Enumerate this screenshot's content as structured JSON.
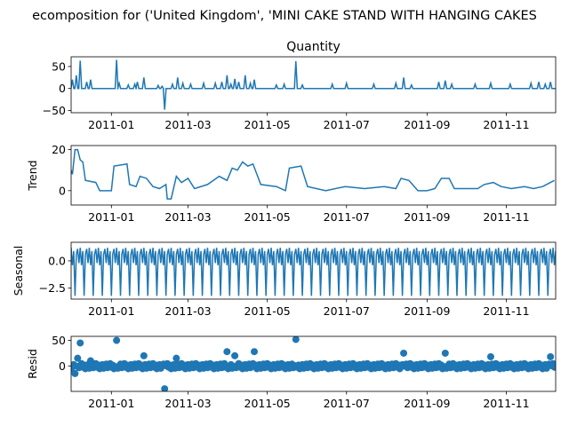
{
  "figure": {
    "title": "ecomposition for ('United Kingdom', 'MINI CAKE STAND WITH HANGING CAKES"
  },
  "chart_data": [
    {
      "type": "line",
      "panel": "observed",
      "title": "Quantity",
      "ylabel": "",
      "color": "#1f77b4",
      "x_range": [
        "2010-12-01",
        "2011-12-09"
      ],
      "ylim": [
        -55,
        72
      ],
      "yticks": [
        -50,
        0,
        50
      ],
      "xticks": [
        "2011-01",
        "2011-03",
        "2011-05",
        "2011-07",
        "2011-09",
        "2011-11"
      ],
      "baseline": 0,
      "spikes": [
        {
          "x": "2010-12-02",
          "y": 20
        },
        {
          "x": "2010-12-05",
          "y": 30
        },
        {
          "x": "2010-12-08",
          "y": 63
        },
        {
          "x": "2010-12-13",
          "y": 15
        },
        {
          "x": "2010-12-16",
          "y": 20
        },
        {
          "x": "2011-01-05",
          "y": 65
        },
        {
          "x": "2011-01-07",
          "y": 12
        },
        {
          "x": "2011-01-14",
          "y": 8
        },
        {
          "x": "2011-01-19",
          "y": 10
        },
        {
          "x": "2011-01-21",
          "y": 15
        },
        {
          "x": "2011-01-26",
          "y": 25
        },
        {
          "x": "2011-02-06",
          "y": 7
        },
        {
          "x": "2011-02-09",
          "y": 5
        },
        {
          "x": "2011-02-11",
          "y": -48
        },
        {
          "x": "2011-02-17",
          "y": 10
        },
        {
          "x": "2011-02-21",
          "y": 25
        },
        {
          "x": "2011-02-25",
          "y": 12
        },
        {
          "x": "2011-03-03",
          "y": 10
        },
        {
          "x": "2011-03-13",
          "y": 12
        },
        {
          "x": "2011-03-22",
          "y": 12
        },
        {
          "x": "2011-03-27",
          "y": 15
        },
        {
          "x": "2011-03-31",
          "y": 30
        },
        {
          "x": "2011-04-03",
          "y": 10
        },
        {
          "x": "2011-04-06",
          "y": 22
        },
        {
          "x": "2011-04-09",
          "y": 15
        },
        {
          "x": "2011-04-14",
          "y": 30
        },
        {
          "x": "2011-04-18",
          "y": 12
        },
        {
          "x": "2011-04-21",
          "y": 20
        },
        {
          "x": "2011-05-08",
          "y": 8
        },
        {
          "x": "2011-05-14",
          "y": 10
        },
        {
          "x": "2011-05-23",
          "y": 62
        },
        {
          "x": "2011-05-28",
          "y": 8
        },
        {
          "x": "2011-06-20",
          "y": 10
        },
        {
          "x": "2011-07-01",
          "y": 12
        },
        {
          "x": "2011-07-22",
          "y": 10
        },
        {
          "x": "2011-08-08",
          "y": 12
        },
        {
          "x": "2011-08-14",
          "y": 25
        },
        {
          "x": "2011-08-20",
          "y": 8
        },
        {
          "x": "2011-09-10",
          "y": 15
        },
        {
          "x": "2011-09-15",
          "y": 18
        },
        {
          "x": "2011-09-20",
          "y": 10
        },
        {
          "x": "2011-10-08",
          "y": 10
        },
        {
          "x": "2011-10-20",
          "y": 12
        },
        {
          "x": "2011-11-04",
          "y": 10
        },
        {
          "x": "2011-11-20",
          "y": 12
        },
        {
          "x": "2011-11-26",
          "y": 15
        },
        {
          "x": "2011-12-01",
          "y": 10
        },
        {
          "x": "2011-12-05",
          "y": 15
        }
      ]
    },
    {
      "type": "line",
      "panel": "trend",
      "title": "",
      "ylabel": "Trend",
      "color": "#1f77b4",
      "x_range": [
        "2010-12-01",
        "2011-12-09"
      ],
      "ylim": [
        -7,
        22
      ],
      "yticks": [
        0,
        20
      ],
      "xticks": [
        "2011-01",
        "2011-03",
        "2011-05",
        "2011-07",
        "2011-09",
        "2011-11"
      ],
      "points": [
        {
          "x": "2010-12-01",
          "y": 10
        },
        {
          "x": "2010-12-02",
          "y": 8
        },
        {
          "x": "2010-12-04",
          "y": 20
        },
        {
          "x": "2010-12-06",
          "y": 20
        },
        {
          "x": "2010-12-08",
          "y": 15
        },
        {
          "x": "2010-12-10",
          "y": 14
        },
        {
          "x": "2010-12-12",
          "y": 5
        },
        {
          "x": "2010-12-20",
          "y": 4
        },
        {
          "x": "2010-12-23",
          "y": 0
        },
        {
          "x": "2011-01-01",
          "y": 0
        },
        {
          "x": "2011-01-03",
          "y": 12
        },
        {
          "x": "2011-01-13",
          "y": 13
        },
        {
          "x": "2011-01-15",
          "y": 3
        },
        {
          "x": "2011-01-20",
          "y": 2
        },
        {
          "x": "2011-01-23",
          "y": 7
        },
        {
          "x": "2011-01-28",
          "y": 6
        },
        {
          "x": "2011-02-02",
          "y": 2
        },
        {
          "x": "2011-02-07",
          "y": 1
        },
        {
          "x": "2011-02-12",
          "y": 3
        },
        {
          "x": "2011-02-13",
          "y": -4
        },
        {
          "x": "2011-02-16",
          "y": -4
        },
        {
          "x": "2011-02-20",
          "y": 7
        },
        {
          "x": "2011-02-24",
          "y": 4
        },
        {
          "x": "2011-03-01",
          "y": 6
        },
        {
          "x": "2011-03-06",
          "y": 1
        },
        {
          "x": "2011-03-16",
          "y": 3
        },
        {
          "x": "2011-03-25",
          "y": 7
        },
        {
          "x": "2011-03-31",
          "y": 5
        },
        {
          "x": "2011-04-04",
          "y": 11
        },
        {
          "x": "2011-04-08",
          "y": 10
        },
        {
          "x": "2011-04-12",
          "y": 14
        },
        {
          "x": "2011-04-16",
          "y": 12
        },
        {
          "x": "2011-04-20",
          "y": 13
        },
        {
          "x": "2011-04-26",
          "y": 3
        },
        {
          "x": "2011-05-08",
          "y": 2
        },
        {
          "x": "2011-05-15",
          "y": 0
        },
        {
          "x": "2011-05-18",
          "y": 11
        },
        {
          "x": "2011-05-27",
          "y": 12
        },
        {
          "x": "2011-06-01",
          "y": 2
        },
        {
          "x": "2011-06-15",
          "y": 0
        },
        {
          "x": "2011-06-30",
          "y": 2
        },
        {
          "x": "2011-07-15",
          "y": 1
        },
        {
          "x": "2011-07-30",
          "y": 2
        },
        {
          "x": "2011-08-08",
          "y": 1
        },
        {
          "x": "2011-08-12",
          "y": 6
        },
        {
          "x": "2011-08-18",
          "y": 5
        },
        {
          "x": "2011-08-25",
          "y": 0
        },
        {
          "x": "2011-09-01",
          "y": 0
        },
        {
          "x": "2011-09-07",
          "y": 1
        },
        {
          "x": "2011-09-12",
          "y": 6
        },
        {
          "x": "2011-09-18",
          "y": 6
        },
        {
          "x": "2011-09-22",
          "y": 1
        },
        {
          "x": "2011-10-01",
          "y": 1
        },
        {
          "x": "2011-10-10",
          "y": 1
        },
        {
          "x": "2011-10-15",
          "y": 3
        },
        {
          "x": "2011-10-22",
          "y": 4
        },
        {
          "x": "2011-10-28",
          "y": 2
        },
        {
          "x": "2011-11-05",
          "y": 1
        },
        {
          "x": "2011-11-15",
          "y": 2
        },
        {
          "x": "2011-11-22",
          "y": 1
        },
        {
          "x": "2011-11-29",
          "y": 2
        },
        {
          "x": "2011-12-05",
          "y": 4
        },
        {
          "x": "2011-12-08",
          "y": 5
        }
      ]
    },
    {
      "type": "line",
      "panel": "seasonal",
      "title": "",
      "ylabel": "Seasonal",
      "color": "#1f77b4",
      "x_range": [
        "2010-12-01",
        "2011-12-09"
      ],
      "ylim": [
        -3.5,
        1.7
      ],
      "yticks": [
        -2.5,
        0.0
      ],
      "ytick_labels": [
        "−2.5",
        "0.0"
      ],
      "xticks": [
        "2011-01",
        "2011-03",
        "2011-05",
        "2011-07",
        "2011-09",
        "2011-11"
      ],
      "period_days": 7,
      "weekly_pattern": [
        1.2,
        -0.4,
        0.9,
        -3.2,
        0.6,
        1.1,
        -0.2
      ]
    },
    {
      "type": "scatter",
      "panel": "resid",
      "title": "",
      "ylabel": "Resid",
      "color": "#1f77b4",
      "x_range": [
        "2010-12-01",
        "2011-12-09"
      ],
      "ylim": [
        -50,
        58
      ],
      "yticks": [
        0,
        50
      ],
      "xticks": [
        "2011-01",
        "2011-03",
        "2011-05",
        "2011-07",
        "2011-09",
        "2011-11"
      ],
      "outliers": [
        {
          "x": "2010-12-08",
          "y": 45
        },
        {
          "x": "2010-12-06",
          "y": 15
        },
        {
          "x": "2010-12-04",
          "y": -15
        },
        {
          "x": "2010-12-16",
          "y": 10
        },
        {
          "x": "2011-01-05",
          "y": 50
        },
        {
          "x": "2011-01-26",
          "y": 20
        },
        {
          "x": "2011-02-11",
          "y": -45
        },
        {
          "x": "2011-02-20",
          "y": 15
        },
        {
          "x": "2011-03-31",
          "y": 28
        },
        {
          "x": "2011-04-06",
          "y": 20
        },
        {
          "x": "2011-04-21",
          "y": 28
        },
        {
          "x": "2011-05-23",
          "y": 52
        },
        {
          "x": "2011-08-14",
          "y": 25
        },
        {
          "x": "2011-09-15",
          "y": 25
        },
        {
          "x": "2011-10-20",
          "y": 18
        },
        {
          "x": "2011-12-05",
          "y": 18
        }
      ]
    }
  ]
}
